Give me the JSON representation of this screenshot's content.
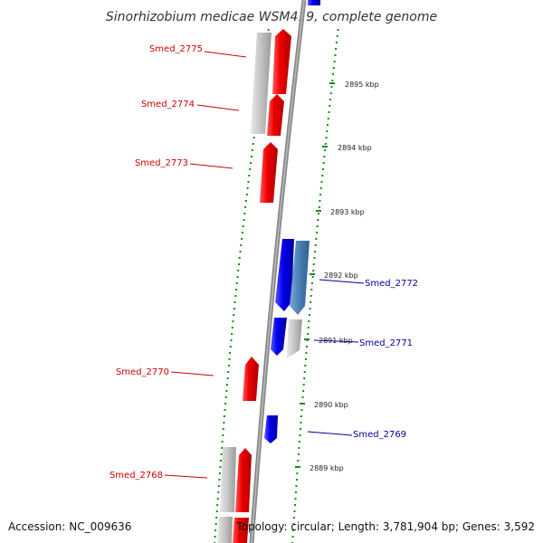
{
  "header": {
    "title": "Sinorhizobium medicae WSM419, complete genome"
  },
  "footer": {
    "accession": "Accession: NC_009636",
    "topology": "Topology: circular; Length: 3,781,904 bp; Genes: 3,592"
  },
  "ticks": [
    {
      "label": "2895 kbp"
    },
    {
      "label": "2894 kbp"
    },
    {
      "label": "2893 kbp"
    },
    {
      "label": "2892 kbp"
    },
    {
      "label": "2891 kbp"
    },
    {
      "label": "2890 kbp"
    },
    {
      "label": "2889 kbp"
    }
  ],
  "gene_labels": [
    {
      "name": "Smed_2775",
      "strand": "forward",
      "color": "#cc0000"
    },
    {
      "name": "Smed_2774",
      "strand": "forward",
      "color": "#cc0000"
    },
    {
      "name": "Smed_2773",
      "strand": "forward",
      "color": "#cc0000"
    },
    {
      "name": "Smed_2772",
      "strand": "reverse",
      "color": "#000099"
    },
    {
      "name": "Smed_2771",
      "strand": "reverse",
      "color": "#000099"
    },
    {
      "name": "Smed_2770",
      "strand": "forward",
      "color": "#cc0000"
    },
    {
      "name": "Smed_2769",
      "strand": "reverse",
      "color": "#000099"
    },
    {
      "name": "Smed_2768",
      "strand": "forward",
      "color": "#cc0000"
    }
  ],
  "colors": {
    "forward_gene": "#ee0000",
    "reverse_gene": "#0000ee",
    "rna_gene": "#4a7fb5",
    "pseudo_gene": "#bbbbbb",
    "backbone": "#888888",
    "dots": "#1a8a1a"
  }
}
